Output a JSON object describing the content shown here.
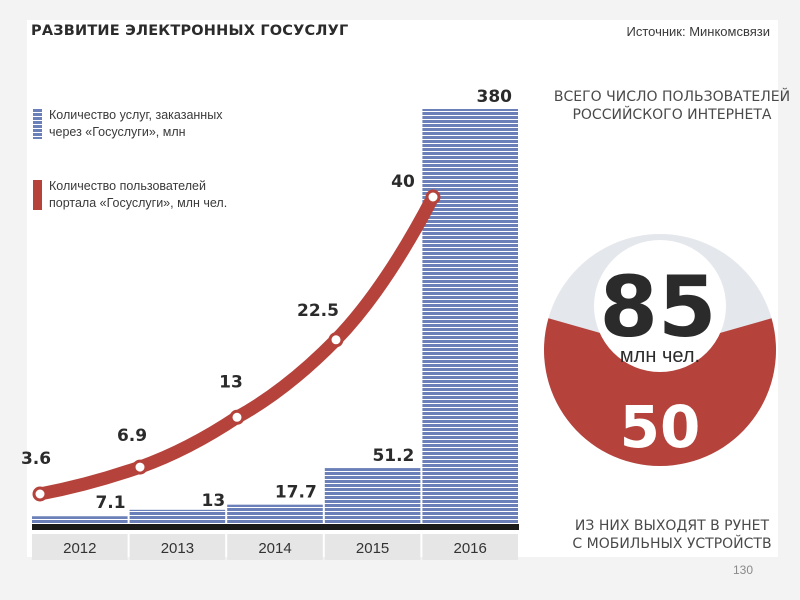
{
  "page": {
    "number": "130"
  },
  "chart_data": [
    {
      "type": "bar+line",
      "title": "РАЗВИТИЕ ЭЛЕКТРОННЫХ ГОСУСЛУГ",
      "source": "Источник: Минкомсвязи",
      "categories": [
        "2012",
        "2013",
        "2014",
        "2015",
        "2016"
      ],
      "series": [
        {
          "name": "Количество услуг, заказанных\nчерез «Госуслуги», млн",
          "kind": "bar",
          "color": "#6b7fb8",
          "values": [
            7.1,
            13,
            17.7,
            51.2,
            380
          ],
          "labels": [
            "7.1",
            "13",
            "17.7",
            "51.2",
            "380"
          ]
        },
        {
          "name": "Количество пользователей\nпортала «Госуслуги», млн чел.",
          "kind": "line",
          "color": "#b5433c",
          "values": [
            3.6,
            6.9,
            13,
            22.5,
            40
          ],
          "labels": [
            "3.6",
            "6.9",
            "13",
            "22.5",
            "40"
          ]
        }
      ],
      "legend_position": "top-left",
      "grid": false
    },
    {
      "type": "pie",
      "heading": "ВСЕГО ЧИСЛО ПОЛЬЗОВАТЕЛЕЙ\nРОССИЙСКОГО ИНТЕРНЕТА",
      "total": 85,
      "total_label": "85",
      "unit": "млн чел.",
      "part": 50,
      "part_label": "50",
      "footer": "ИЗ НИХ ВЫХОДЯТ В РУНЕТ\nС МОБИЛЬНЫХ УСТРОЙСТВ",
      "colors": {
        "total": "#e4e7ec",
        "part": "#b5433c",
        "center_text": "#2b2b2b",
        "part_text": "#ffffff"
      }
    }
  ]
}
